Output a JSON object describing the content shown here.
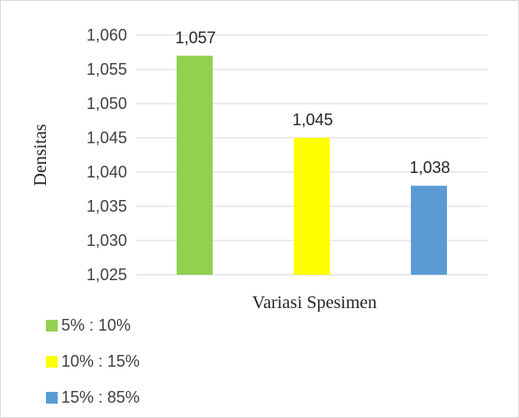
{
  "chart_data": {
    "type": "bar",
    "categories": [
      "5% : 10%",
      "10% : 15%",
      "15% : 85%"
    ],
    "values": [
      1.057,
      1.045,
      1.038
    ],
    "data_labels": [
      "1,057",
      "1,045",
      "1,038"
    ],
    "colors": [
      "#92d050",
      "#ffff00",
      "#5b9bd5"
    ],
    "xlabel": "Variasi Spesimen",
    "ylabel": "Densitas",
    "ylim": [
      1.025,
      1.06
    ],
    "yticks": [
      1.025,
      1.03,
      1.035,
      1.04,
      1.045,
      1.05,
      1.055,
      1.06
    ],
    "ytick_labels": [
      "1,025",
      "1,030",
      "1,035",
      "1,040",
      "1,045",
      "1,050",
      "1,055",
      "1,060"
    ],
    "grid": true,
    "legend": "bottom-left"
  }
}
